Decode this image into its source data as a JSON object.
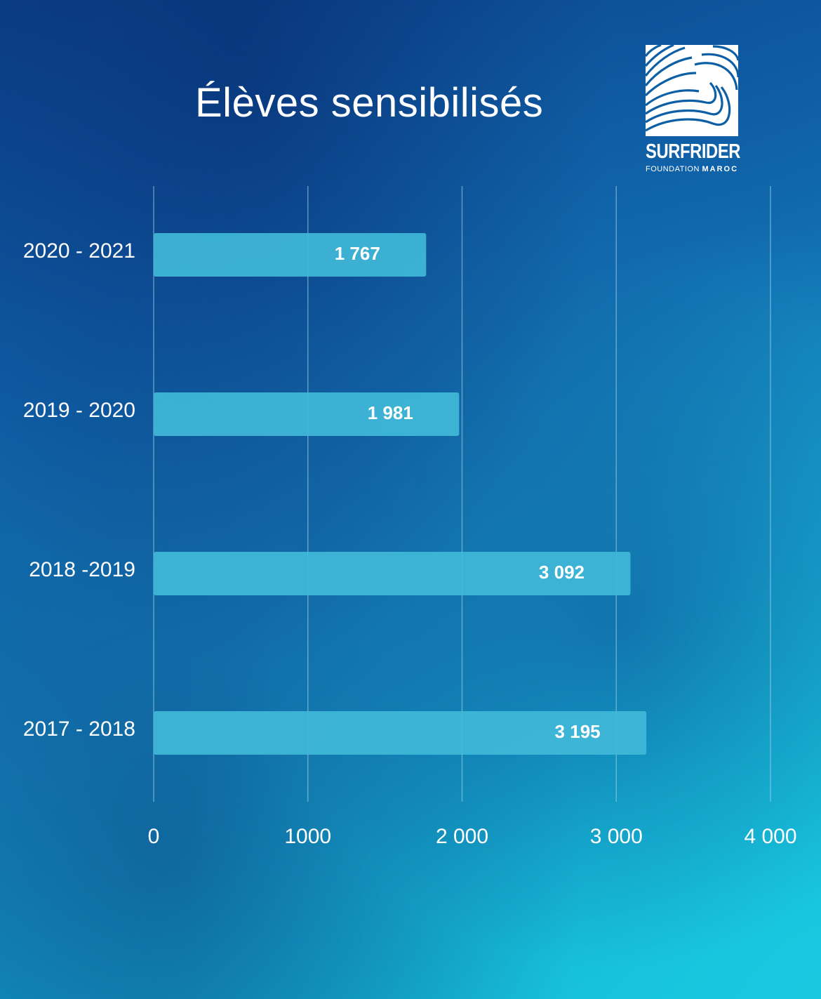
{
  "header": {
    "title": "Élèves sensibilisés"
  },
  "logo": {
    "name": "SURFRIDER",
    "sub_a": "FOUNDATION",
    "sub_b": "MAROC"
  },
  "colors": {
    "bar": "#40b8d8",
    "grid": "#9fd3ea",
    "text": "#ffffff"
  },
  "chart_data": {
    "type": "bar",
    "orientation": "horizontal",
    "categories": [
      "2020 - 2021",
      "2019 - 2020",
      "2018 -2019",
      "2017 - 2018"
    ],
    "values": [
      1767,
      1981,
      3092,
      3195
    ],
    "value_labels": [
      "1 767",
      "1 981",
      "3 092",
      "3 195"
    ],
    "title": "Élèves sensibilisés",
    "xlim": [
      0,
      4000
    ],
    "xticks": [
      0,
      1000,
      2000,
      3000,
      4000
    ],
    "xtick_labels": [
      "0",
      "1000",
      "2 000",
      "3 000",
      "4 000"
    ],
    "grid": "vertical",
    "legend": "none"
  }
}
